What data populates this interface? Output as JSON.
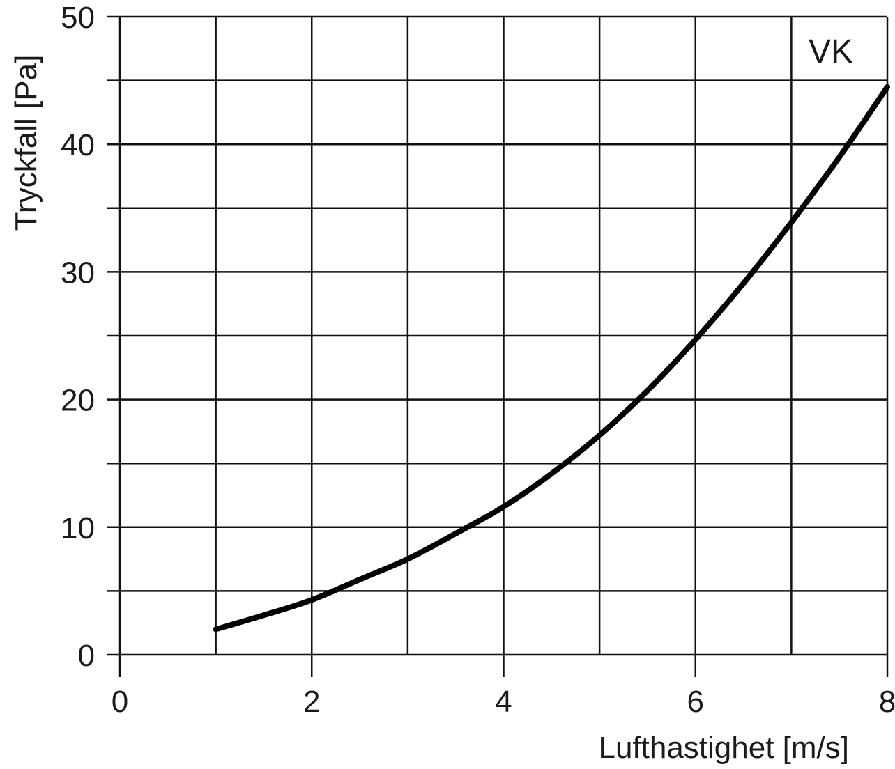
{
  "chart_data": {
    "type": "line",
    "xlabel": "Lufthastighet [m/s]",
    "ylabel": "Tryckfall [Pa]",
    "xlim": [
      0,
      8
    ],
    "ylim": [
      0,
      50
    ],
    "x_ticks": [
      0,
      2,
      4,
      6,
      8
    ],
    "x_tick_labels": [
      "0",
      "2",
      "4",
      "6",
      "8"
    ],
    "y_ticks": [
      0,
      10,
      20,
      30,
      40,
      50
    ],
    "y_tick_labels": [
      "0",
      "10",
      "20",
      "30",
      "40",
      "50"
    ],
    "x_grid": [
      0,
      1,
      2,
      3,
      4,
      5,
      6,
      7,
      8
    ],
    "y_grid": [
      0,
      5,
      10,
      15,
      20,
      25,
      30,
      35,
      40,
      45,
      50
    ],
    "grid": true,
    "annotation": "VK",
    "series": [
      {
        "color": "#000000",
        "x": [
          1,
          1.5,
          2,
          2.5,
          3,
          3.5,
          4,
          4.5,
          5,
          5.5,
          6,
          6.5,
          7,
          7.5,
          8
        ],
        "y": [
          2,
          3.1,
          4.3,
          5.9,
          7.5,
          9.5,
          11.6,
          14.2,
          17.2,
          20.7,
          24.7,
          29.1,
          33.9,
          39.0,
          44.5
        ]
      }
    ]
  }
}
